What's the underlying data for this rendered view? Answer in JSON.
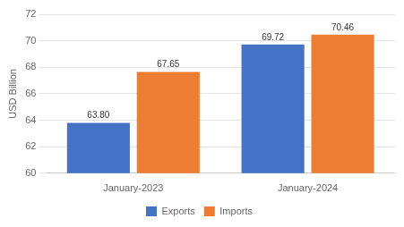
{
  "chart_data": {
    "type": "bar",
    "categories": [
      "January-2023",
      "January-2024"
    ],
    "series": [
      {
        "name": "Exports",
        "color": "#4472C4",
        "values": [
          63.8,
          69.72
        ],
        "value_labels": [
          "63.80",
          "69.72"
        ]
      },
      {
        "name": "Imports",
        "color": "#ED7D31",
        "values": [
          67.65,
          70.46
        ],
        "value_labels": [
          "67.65",
          "70.46"
        ]
      }
    ],
    "ylabel": "USD Billion",
    "ylim": [
      60,
      72
    ],
    "yticks": [
      60,
      62,
      64,
      66,
      68,
      70,
      72
    ],
    "grid": true,
    "legend": "bottom",
    "data_labels": true
  }
}
